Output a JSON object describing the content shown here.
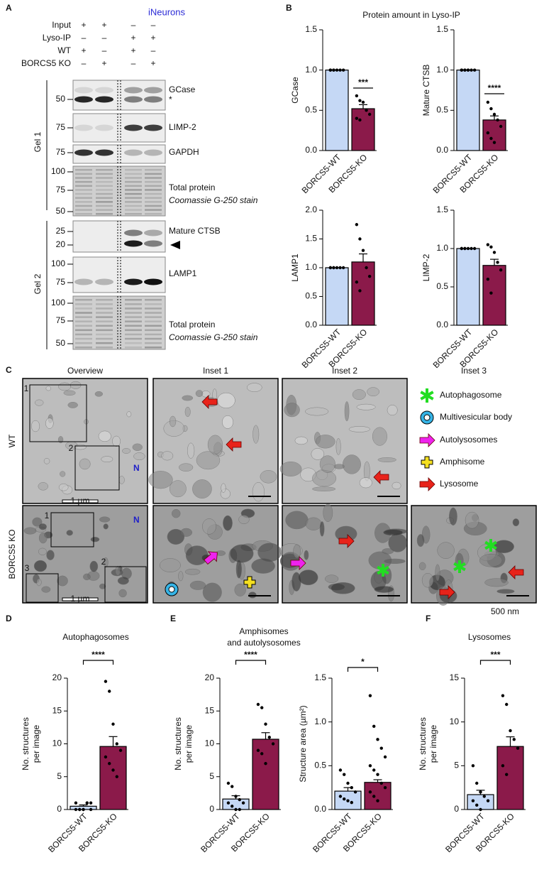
{
  "figure_labels": {
    "a": "A",
    "b": "B",
    "c": "C",
    "d": "D",
    "e": "E",
    "f": "F"
  },
  "panel_a": {
    "cell_line": "iNeurons",
    "conditions": [
      {
        "label": "Input",
        "signs": [
          "+",
          "+",
          "–",
          "–"
        ]
      },
      {
        "label": "Lyso-IP",
        "signs": [
          "–",
          "–",
          "+",
          "+"
        ]
      },
      {
        "label": "WT",
        "signs": [
          "+",
          "–",
          "+",
          "–"
        ]
      },
      {
        "label": "BORCS5 KO",
        "signs": [
          "–",
          "+",
          "–",
          "+"
        ]
      }
    ],
    "gels": [
      "Gel 1",
      "Gel 2"
    ],
    "blots": [
      {
        "label": "GCase",
        "note": "*",
        "markers": [
          "50"
        ]
      },
      {
        "label": "LIMP-2",
        "markers": [
          "75"
        ]
      },
      {
        "label": "GAPDH",
        "markers": [
          "75"
        ]
      },
      {
        "label": "Total protein",
        "sublabel": "Coomassie G-250 stain",
        "markers": [
          "100",
          "75",
          "50"
        ]
      },
      {
        "label": "Mature CTSB",
        "markers": [
          "25",
          "20"
        ]
      },
      {
        "label": "LAMP1",
        "markers": [
          "100",
          "75"
        ]
      },
      {
        "label": "Total protein",
        "sublabel": "Coomassie G-250 stain",
        "markers": [
          "100",
          "75",
          "50"
        ]
      }
    ]
  },
  "panel_b_title": "Protein amount in Lyso-IP",
  "panel_c": {
    "columns": [
      "Overview",
      "Inset 1",
      "Inset 2",
      "Inset 3"
    ],
    "rows": [
      "WT",
      "BORCS5 KO"
    ],
    "legend": [
      "Autophagosome",
      "Multivesicular body",
      "Autolysosomes",
      "Amphisome",
      "Lysosome"
    ],
    "nucleus": "N",
    "inset_numbers": [
      "1",
      "2",
      "3"
    ],
    "overview_scale": "1 µm",
    "scale_bar": "500 nm"
  },
  "chart_data": [
    {
      "type": "bar",
      "ylabel": "GCase",
      "categories": [
        "BORCS5-WT",
        "BORCS5-KO"
      ],
      "colors": [
        "#c5d8f5",
        "#8b1a4a"
      ],
      "values": [
        1.0,
        0.52
      ],
      "errors": [
        0,
        0.05
      ],
      "points": [
        [
          1,
          1,
          1,
          1,
          1,
          1,
          1
        ],
        [
          0.68,
          0.62,
          0.6,
          0.5,
          0.45,
          0.4,
          0.38
        ]
      ],
      "significance": "***",
      "ylim": [
        0,
        1.5
      ],
      "yticks": [
        {
          "value": 0,
          "label": "0.0"
        },
        0.5,
        {
          "value": 1,
          "label": "1.0"
        },
        1.5
      ]
    },
    {
      "type": "bar",
      "ylabel": "Mature CTSB",
      "categories": [
        "BORCS5-WT",
        "BORCS5-KO"
      ],
      "colors": [
        "#c5d8f5",
        "#8b1a4a"
      ],
      "values": [
        1.0,
        0.38
      ],
      "errors": [
        0,
        0.05
      ],
      "points": [
        [
          1,
          1,
          1,
          1,
          1,
          1,
          1,
          1
        ],
        [
          0.6,
          0.52,
          0.45,
          0.38,
          0.3,
          0.22,
          0.15,
          0.1
        ]
      ],
      "significance": "****",
      "ylim": [
        0,
        1.5
      ],
      "yticks": [
        {
          "value": 0,
          "label": "0.0"
        },
        0.5,
        {
          "value": 1,
          "label": "1.0"
        },
        1.5
      ]
    },
    {
      "type": "bar",
      "ylabel": "LAMP1",
      "categories": [
        "BORCS5-WT",
        "BORCS5-KO"
      ],
      "colors": [
        "#c5d8f5",
        "#8b1a4a"
      ],
      "values": [
        1.0,
        1.1
      ],
      "errors": [
        0,
        0.14
      ],
      "points": [
        [
          1,
          1,
          1,
          1,
          1,
          1,
          1
        ],
        [
          1.75,
          1.5,
          1.3,
          1.0,
          0.85,
          0.75,
          0.6
        ]
      ],
      "ylim": [
        0,
        2.0
      ],
      "yticks": [
        {
          "value": 0,
          "label": "0.0"
        },
        0.5,
        {
          "value": 1,
          "label": "1.0"
        },
        1.5,
        {
          "value": 2,
          "label": "2.0"
        }
      ]
    },
    {
      "type": "bar",
      "ylabel": "LIMP-2",
      "categories": [
        "BORCS5-WT",
        "BORCS5-KO"
      ],
      "colors": [
        "#c5d8f5",
        "#8b1a4a"
      ],
      "values": [
        1.0,
        0.78
      ],
      "errors": [
        0,
        0.08
      ],
      "points": [
        [
          1,
          1,
          1,
          1,
          1,
          1,
          1
        ],
        [
          1.05,
          1.02,
          0.95,
          0.82,
          0.72,
          0.6,
          0.42
        ]
      ],
      "ylim": [
        0,
        1.5
      ],
      "yticks": [
        {
          "value": 0,
          "label": "0.0"
        },
        0.5,
        {
          "value": 1,
          "label": "1.0"
        },
        1.5
      ]
    },
    {
      "type": "bar",
      "title": "Autophagosomes",
      "ylabel": [
        "No. structures",
        "per image"
      ],
      "categories": [
        "BORCS5-WT",
        "BORCS5-KO"
      ],
      "colors": [
        "#c5d8f5",
        "#8b1a4a"
      ],
      "values": [
        0.5,
        9.6
      ],
      "errors": [
        0.2,
        1.5
      ],
      "points": [
        [
          0,
          0,
          0,
          1,
          1,
          1,
          0,
          0,
          1,
          0
        ],
        [
          19.5,
          18,
          13,
          10,
          9,
          8,
          7,
          6,
          5
        ]
      ],
      "significance": "****",
      "ylim": [
        0,
        20
      ],
      "yticks": [
        0,
        5,
        10,
        15,
        20
      ]
    },
    {
      "type": "bar",
      "title_lines": [
        "Amphisomes",
        "and autolysosomes"
      ],
      "ylabel": [
        "No. structures",
        "per image"
      ],
      "categories": [
        "BORCS5-WT",
        "BORCS5-KO"
      ],
      "colors": [
        "#c5d8f5",
        "#8b1a4a"
      ],
      "values": [
        1.6,
        10.7
      ],
      "errors": [
        0.5,
        1.0
      ],
      "points": [
        [
          4,
          3.5,
          2,
          1.5,
          1,
          1,
          0.5,
          0,
          0
        ],
        [
          16,
          15.5,
          13,
          11,
          10,
          9,
          8.5,
          7
        ]
      ],
      "significance": "****",
      "ylim": [
        0,
        20
      ],
      "yticks": [
        0,
        5,
        10,
        15,
        20
      ]
    },
    {
      "type": "bar",
      "ylabel": "Structure area (µm²)",
      "categories": [
        "BORCS5-WT",
        "BORCS5-KO"
      ],
      "colors": [
        "#c5d8f5",
        "#8b1a4a"
      ],
      "values": [
        0.21,
        0.31
      ],
      "errors": [
        0.04,
        0.03
      ],
      "points": [
        [
          0.45,
          0.4,
          0.3,
          0.25,
          0.2,
          0.15,
          0.12,
          0.1,
          0.08
        ],
        [
          1.3,
          0.95,
          0.8,
          0.7,
          0.6,
          0.5,
          0.45,
          0.4,
          0.3,
          0.25,
          0.2,
          0.15,
          0.1
        ]
      ],
      "significance": "*",
      "ylim": [
        0,
        1.5
      ],
      "yticks": [
        {
          "value": 0,
          "label": "0.0"
        },
        0.5,
        {
          "value": 1,
          "label": "1.0"
        },
        1.5
      ]
    },
    {
      "type": "bar",
      "title": "Lysosomes",
      "ylabel": [
        "No. structures",
        "per image"
      ],
      "categories": [
        "BORCS5-WT",
        "BORCS5-KO"
      ],
      "colors": [
        "#c5d8f5",
        "#8b1a4a"
      ],
      "values": [
        1.7,
        7.2
      ],
      "errors": [
        0.5,
        1.1
      ],
      "points": [
        [
          5,
          3,
          2,
          1.5,
          1,
          1,
          0.5,
          0
        ],
        [
          13,
          12,
          9,
          8,
          7,
          5,
          4
        ]
      ],
      "significance": "***",
      "ylim": [
        0,
        15
      ],
      "yticks": [
        0,
        5,
        10,
        15
      ]
    }
  ]
}
